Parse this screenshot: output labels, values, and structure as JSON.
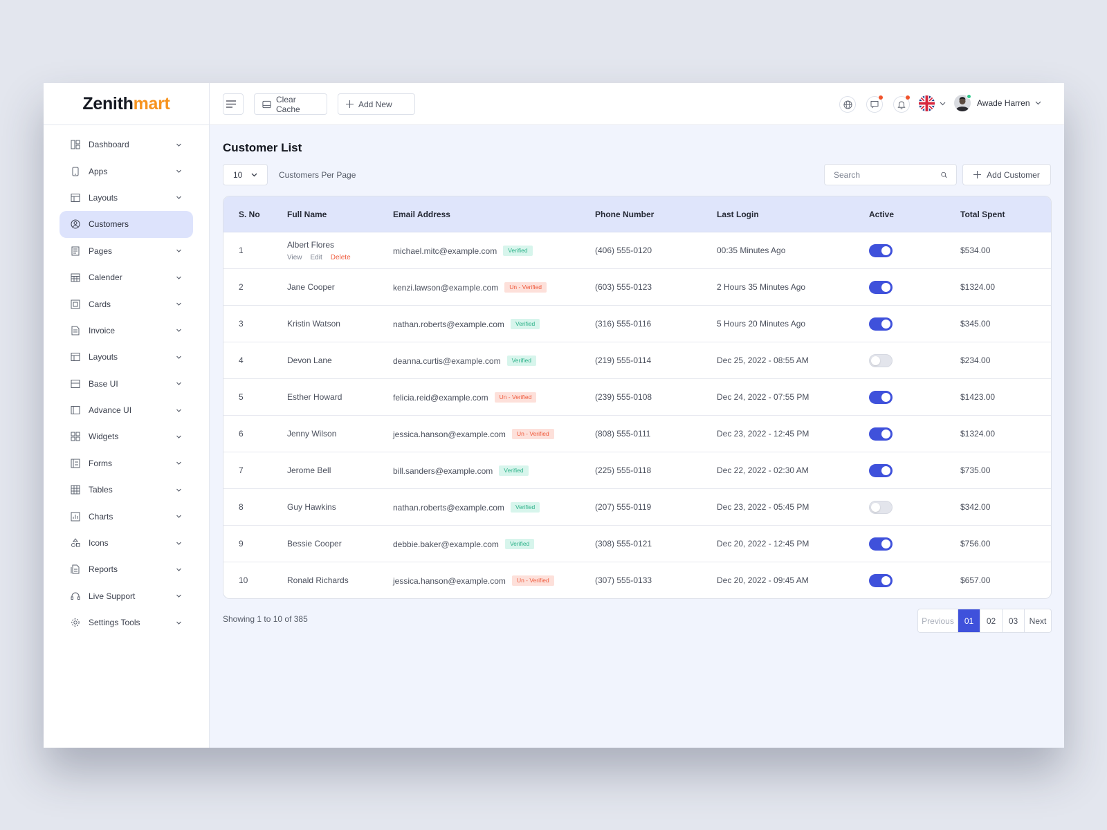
{
  "brand": {
    "part1": "Zenith",
    "part2": "mart"
  },
  "sidebar": {
    "items": [
      {
        "label": "Dashboard",
        "icon": "dashboard-icon",
        "active": false
      },
      {
        "label": "Apps",
        "icon": "phone-icon",
        "active": false
      },
      {
        "label": "Layouts",
        "icon": "layout-icon",
        "active": false
      },
      {
        "label": "Customers",
        "icon": "user-circle-icon",
        "active": true
      },
      {
        "label": "Pages",
        "icon": "pages-icon",
        "active": false
      },
      {
        "label": "Calender",
        "icon": "calendar-icon",
        "active": false
      },
      {
        "label": "Cards",
        "icon": "cards-icon",
        "active": false
      },
      {
        "label": "Invoice",
        "icon": "invoice-icon",
        "active": false
      },
      {
        "label": "Layouts",
        "icon": "layout-icon",
        "active": false
      },
      {
        "label": "Base UI",
        "icon": "base-ui-icon",
        "active": false
      },
      {
        "label": "Advance UI",
        "icon": "advance-ui-icon",
        "active": false
      },
      {
        "label": "Widgets",
        "icon": "widgets-icon",
        "active": false
      },
      {
        "label": "Forms",
        "icon": "forms-icon",
        "active": false
      },
      {
        "label": "Tables",
        "icon": "table-icon",
        "active": false
      },
      {
        "label": "Charts",
        "icon": "chart-icon",
        "active": false
      },
      {
        "label": "Icons",
        "icon": "shapes-icon",
        "active": false
      },
      {
        "label": "Reports",
        "icon": "report-icon",
        "active": false
      },
      {
        "label": "Live Support",
        "icon": "headset-icon",
        "active": false
      },
      {
        "label": "Settings Tools",
        "icon": "gear-icon",
        "active": false
      }
    ]
  },
  "topbar": {
    "clear_cache": "Clear Cache",
    "add_new": "Add New",
    "user_name": "Awade Harren"
  },
  "page": {
    "title": "Customer List",
    "per_page_value": "10",
    "per_page_label": "Customers Per Page",
    "search_placeholder": "Search",
    "add_customer": "Add Customer"
  },
  "table": {
    "headers": {
      "sno": "S. No",
      "name": "Full Name",
      "email": "Email Address",
      "phone": "Phone Number",
      "last_login": "Last Login",
      "active": "Active",
      "total": "Total Spent"
    },
    "row_actions": {
      "view": "View",
      "edit": "Edit",
      "delete": "Delete"
    },
    "rows": [
      {
        "sno": "1",
        "name": "Albert Flores",
        "email": "michael.mitc@example.com",
        "status": "Verified",
        "verified": true,
        "phone": "(406) 555-0120",
        "last_login": "00:35 Minutes Ago",
        "active": true,
        "total": "$534.00"
      },
      {
        "sno": "2",
        "name": "Jane Cooper",
        "email": "kenzi.lawson@example.com",
        "status": "Un - Verified",
        "verified": false,
        "phone": "(603) 555-0123",
        "last_login": "2 Hours 35 Minutes Ago",
        "active": true,
        "total": "$1324.00"
      },
      {
        "sno": "3",
        "name": "Kristin Watson",
        "email": "nathan.roberts@example.com",
        "status": "Verified",
        "verified": true,
        "phone": "(316) 555-0116",
        "last_login": "5 Hours 20 Minutes Ago",
        "active": true,
        "total": "$345.00"
      },
      {
        "sno": "4",
        "name": "Devon Lane",
        "email": "deanna.curtis@example.com",
        "status": "Verified",
        "verified": true,
        "phone": "(219) 555-0114",
        "last_login": "Dec 25, 2022 - 08:55 AM",
        "active": false,
        "total": "$234.00"
      },
      {
        "sno": "5",
        "name": "Esther Howard",
        "email": "felicia.reid@example.com",
        "status": "Un - Verified",
        "verified": false,
        "phone": "(239) 555-0108",
        "last_login": "Dec 24, 2022 - 07:55 PM",
        "active": true,
        "total": "$1423.00"
      },
      {
        "sno": "6",
        "name": "Jenny Wilson",
        "email": "jessica.hanson@example.com",
        "status": "Un - Verified",
        "verified": false,
        "phone": "(808) 555-0111",
        "last_login": "Dec 23, 2022 - 12:45 PM",
        "active": true,
        "total": "$1324.00"
      },
      {
        "sno": "7",
        "name": "Jerome Bell",
        "email": "bill.sanders@example.com",
        "status": "Verified",
        "verified": true,
        "phone": "(225) 555-0118",
        "last_login": "Dec 22, 2022 - 02:30 AM",
        "active": true,
        "total": "$735.00"
      },
      {
        "sno": "8",
        "name": "Guy Hawkins",
        "email": "nathan.roberts@example.com",
        "status": "Verified",
        "verified": true,
        "phone": "(207) 555-0119",
        "last_login": "Dec 23, 2022 - 05:45 PM",
        "active": false,
        "total": "$342.00"
      },
      {
        "sno": "9",
        "name": "Bessie Cooper",
        "email": "debbie.baker@example.com",
        "status": "Verified",
        "verified": true,
        "phone": "(308) 555-0121",
        "last_login": "Dec 20, 2022 - 12:45 PM",
        "active": true,
        "total": "$756.00"
      },
      {
        "sno": "10",
        "name": "Ronald Richards",
        "email": "jessica.hanson@example.com",
        "status": "Un - Verified",
        "verified": false,
        "phone": "(307) 555-0133",
        "last_login": "Dec 20, 2022 - 09:45 AM",
        "active": true,
        "total": "$657.00"
      }
    ]
  },
  "footer": {
    "showing": "Showing 1 to 10 of 385",
    "pagination": {
      "previous": "Previous",
      "pages": [
        "01",
        "02",
        "03"
      ],
      "current": "01",
      "next": "Next"
    }
  },
  "colors": {
    "accent": "#3f51db",
    "brand_orange": "#f7931e",
    "verified": "#2eb28a",
    "unverified": "#ef5a3c"
  }
}
